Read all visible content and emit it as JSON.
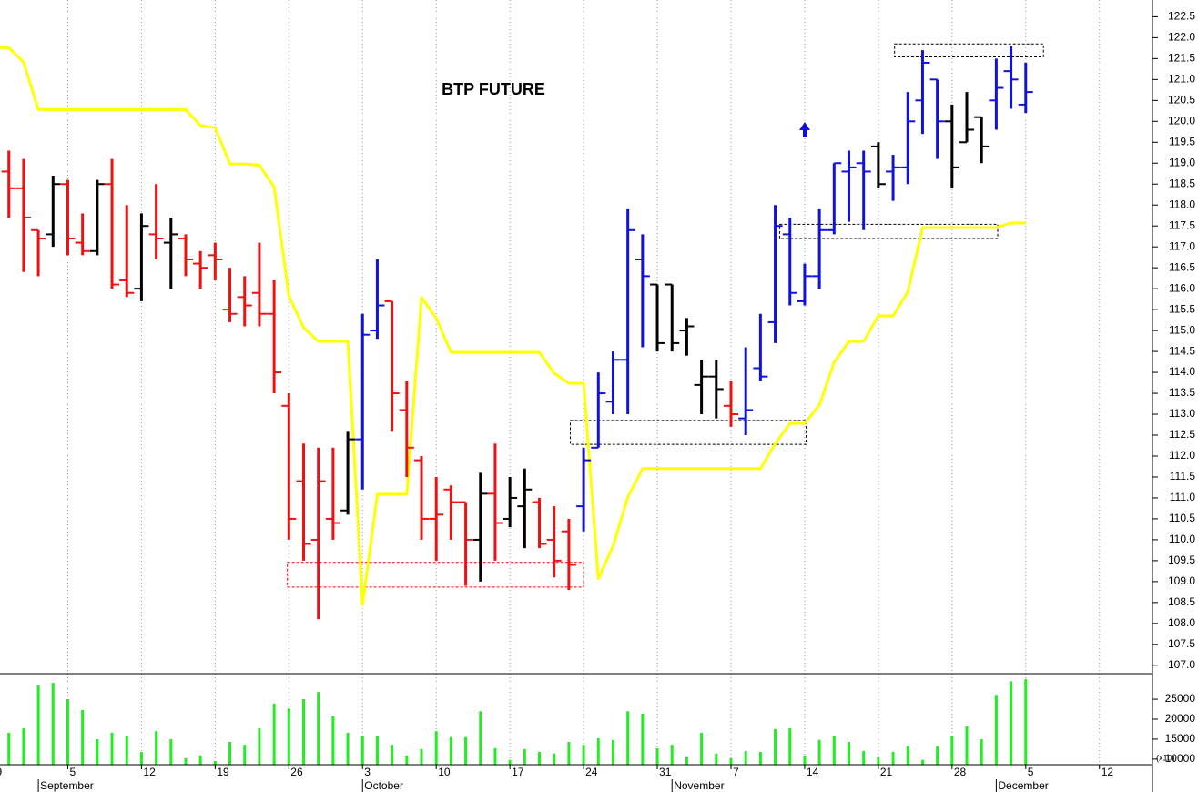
{
  "chart_data": [
    {
      "type": "ohlc",
      "title": "BTP FUTURE",
      "x": [
        1,
        2,
        3,
        4,
        5,
        6,
        7,
        8,
        9,
        10,
        11,
        12,
        13,
        14,
        15,
        16,
        17,
        18,
        19,
        20,
        21,
        22,
        23,
        24,
        25,
        26,
        27,
        28,
        29,
        30,
        31,
        32,
        33,
        34,
        35,
        36,
        37,
        38,
        39,
        40,
        41,
        42,
        43,
        44,
        45,
        46,
        47,
        48,
        49,
        50,
        51,
        52,
        53,
        54,
        55,
        56,
        57,
        58,
        59,
        60,
        61,
        62,
        63,
        64,
        65,
        66,
        67,
        68,
        69,
        70
      ],
      "open": [
        118.8,
        118.4,
        117.4,
        117.3,
        118.5,
        117.1,
        116.9,
        118.5,
        116.2,
        116.0,
        117.3,
        117.1,
        117.2,
        116.6,
        116.8,
        115.5,
        115.8,
        115.9,
        115.4,
        113.2,
        111.4,
        110.0,
        110.5,
        110.7,
        112.4,
        115.0,
        115.7,
        113.1,
        111.9,
        110.5,
        111.2,
        110.9,
        110.0,
        111.1,
        110.5,
        110.8,
        110.9,
        110.0,
        110.2,
        110.8,
        112.2,
        113.3,
        114.3,
        116.7,
        116.1,
        116.1,
        115.0,
        113.7,
        113.9,
        113.2,
        112.9,
        114.1,
        115.2,
        117.3,
        115.7,
        116.3,
        117.4,
        118.8,
        119.0,
        119.4,
        118.8,
        118.9,
        120.5,
        121.0,
        120.0,
        119.5,
        120.1,
        120.5,
        121.2,
        120.4
      ],
      "high": [
        119.3,
        119.1,
        117.4,
        118.7,
        118.6,
        117.8,
        118.6,
        119.1,
        118.0,
        117.8,
        118.5,
        117.7,
        117.3,
        116.9,
        117.1,
        116.5,
        116.3,
        117.1,
        116.2,
        113.5,
        112.3,
        112.2,
        112.2,
        112.6,
        115.4,
        116.7,
        115.7,
        113.8,
        112.0,
        111.5,
        111.3,
        110.9,
        111.6,
        112.3,
        111.5,
        111.7,
        111.0,
        110.8,
        110.5,
        112.2,
        114.0,
        114.5,
        117.9,
        117.3,
        116.1,
        116.1,
        115.3,
        114.3,
        114.3,
        113.8,
        114.6,
        115.4,
        118.0,
        117.7,
        116.6,
        117.9,
        119.0,
        119.3,
        119.3,
        119.5,
        119.2,
        120.7,
        121.7,
        121.0,
        120.4,
        120.7,
        120.1,
        121.5,
        121.8,
        121.4
      ],
      "low": [
        117.7,
        116.4,
        116.3,
        117.0,
        116.8,
        116.8,
        116.8,
        116.0,
        115.8,
        115.7,
        116.7,
        116.0,
        116.3,
        116.0,
        116.2,
        115.2,
        115.1,
        115.1,
        113.5,
        110.0,
        109.5,
        108.1,
        110.0,
        110.6,
        111.2,
        114.8,
        112.6,
        111.5,
        110.0,
        109.5,
        110.0,
        108.9,
        109.0,
        109.5,
        110.3,
        109.8,
        109.8,
        109.1,
        108.8,
        110.2,
        112.2,
        113.0,
        113.0,
        114.6,
        114.5,
        114.5,
        114.4,
        113.0,
        112.9,
        112.7,
        112.5,
        113.8,
        114.7,
        115.6,
        115.6,
        116.0,
        117.3,
        117.6,
        117.4,
        118.4,
        118.1,
        118.5,
        119.7,
        119.1,
        118.4,
        119.5,
        119.0,
        119.8,
        120.3,
        120.2
      ],
      "close": [
        118.4,
        117.7,
        117.2,
        118.5,
        117.2,
        116.9,
        118.5,
        116.1,
        115.9,
        117.5,
        117.2,
        117.3,
        116.7,
        116.5,
        116.7,
        115.4,
        115.6,
        115.4,
        114.0,
        110.5,
        109.9,
        111.4,
        110.4,
        112.4,
        114.9,
        115.6,
        113.5,
        112.2,
        110.5,
        110.6,
        110.9,
        110.0,
        111.1,
        110.4,
        111.0,
        111.2,
        109.9,
        109.5,
        109.4,
        111.9,
        113.5,
        114.3,
        117.4,
        116.3,
        114.7,
        114.7,
        115.1,
        113.9,
        113.6,
        113.0,
        113.1,
        113.9,
        117.5,
        115.9,
        116.3,
        117.4,
        119.0,
        118.9,
        118.8,
        118.5,
        118.9,
        120.0,
        121.4,
        120.0,
        118.9,
        119.8,
        119.4,
        120.8,
        121.0,
        120.7
      ],
      "bar_colors": [
        "#ee1111",
        "#ee1111",
        "#ee1111",
        "#000000",
        "#ee1111",
        "#ee1111",
        "#000000",
        "#ee1111",
        "#ee1111",
        "#000000",
        "#ee1111",
        "#000000",
        "#ee1111",
        "#ee1111",
        "#ee1111",
        "#ee1111",
        "#ee1111",
        "#ee1111",
        "#ee1111",
        "#ee1111",
        "#ee1111",
        "#ee1111",
        "#ee1111",
        "#000000",
        "#1111dd",
        "#1111dd",
        "#ee1111",
        "#ee1111",
        "#ee1111",
        "#ee1111",
        "#ee1111",
        "#ee1111",
        "#000000",
        "#ee1111",
        "#000000",
        "#000000",
        "#ee1111",
        "#ee1111",
        "#ee1111",
        "#1111dd",
        "#1111dd",
        "#1111dd",
        "#1111dd",
        "#1111dd",
        "#000000",
        "#000000",
        "#000000",
        "#000000",
        "#000000",
        "#ee1111",
        "#1111dd",
        "#1111dd",
        "#1111dd",
        "#1111dd",
        "#1111dd",
        "#1111dd",
        "#1111dd",
        "#1111dd",
        "#1111dd",
        "#000000",
        "#1111dd",
        "#1111dd",
        "#1111dd",
        "#1111dd",
        "#000000",
        "#000000",
        "#000000",
        "#1111dd",
        "#1111dd",
        "#1111dd"
      ],
      "series": [
        {
          "type": "line",
          "color": "#ffff00",
          "x": [
            0,
            1,
            2,
            3,
            4,
            5,
            6,
            7,
            8,
            9,
            10,
            11,
            12,
            13,
            14,
            15,
            16,
            17,
            18,
            19,
            20,
            21,
            22,
            23,
            24,
            25,
            26,
            27,
            28,
            29,
            30,
            31,
            32,
            33,
            34,
            35,
            36,
            37,
            38,
            39,
            40,
            41,
            42,
            43,
            44,
            45,
            46,
            47,
            48,
            49,
            50,
            51,
            52,
            53,
            54,
            55,
            56,
            57,
            58,
            59,
            60,
            61,
            62,
            63,
            64,
            65,
            66,
            67,
            68,
            69,
            70
          ],
          "values": [
            121.76,
            121.76,
            121.41,
            120.28,
            120.28,
            120.28,
            120.28,
            120.28,
            120.28,
            120.28,
            120.28,
            120.28,
            120.28,
            120.28,
            119.9,
            119.85,
            118.98,
            118.98,
            118.95,
            118.43,
            115.83,
            115.07,
            114.74,
            114.74,
            114.74,
            108.45,
            111.09,
            111.09,
            111.09,
            115.79,
            115.3,
            114.48,
            114.48,
            114.48,
            114.48,
            114.48,
            114.48,
            114.48,
            113.98,
            113.74,
            113.74,
            109.07,
            109.85,
            111.02,
            111.7,
            111.7,
            111.7,
            111.7,
            111.7,
            111.7,
            111.7,
            111.7,
            111.7,
            112.3,
            112.78,
            112.78,
            113.22,
            114.24,
            114.74,
            114.74,
            115.35,
            115.35,
            115.93,
            117.46,
            117.46,
            117.46,
            117.46,
            117.46,
            117.46,
            117.57,
            117.57
          ]
        }
      ],
      "zones": [
        {
          "x": [
            19.9,
            40.0
          ],
          "y": [
            108.87,
            109.46
          ],
          "color": "#ff0000"
        },
        {
          "x": [
            39.1,
            55.1
          ],
          "y": [
            112.28,
            112.85
          ],
          "color": "#000000"
        },
        {
          "x": [
            53.3,
            68.1
          ],
          "y": [
            117.2,
            117.54
          ],
          "color": "#000000"
        },
        {
          "x": [
            61.1,
            71.2
          ],
          "y": [
            121.54,
            121.85
          ],
          "color": "#000000"
        }
      ],
      "xlim": [
        0.4,
        78.6
      ],
      "xticks": [
        {
          "value": 0,
          "label": "9"
        },
        {
          "value": 5,
          "label": "5"
        },
        {
          "value": 10,
          "label": "12"
        },
        {
          "value": 15,
          "label": "19"
        },
        {
          "value": 20,
          "label": "26"
        },
        {
          "value": 25,
          "label": "3"
        },
        {
          "value": 30,
          "label": "10"
        },
        {
          "value": 35,
          "label": "17"
        },
        {
          "value": 40,
          "label": "24"
        },
        {
          "value": 45,
          "label": "31"
        },
        {
          "value": 50,
          "label": "7"
        },
        {
          "value": 55,
          "label": "14"
        },
        {
          "value": 60,
          "label": "21"
        },
        {
          "value": 65,
          "label": "28"
        },
        {
          "value": 70,
          "label": "5"
        },
        {
          "value": 75,
          "label": "12"
        }
      ],
      "month_ticks": [
        {
          "value": 3,
          "label": "September"
        },
        {
          "value": 25,
          "label": "October"
        },
        {
          "value": 46,
          "label": "November"
        },
        {
          "value": 68,
          "label": "December"
        }
      ],
      "ylim": [
        106.8,
        122.9
      ],
      "yticks": [
        {
          "value": 107,
          "label": "107.0"
        },
        107.5,
        {
          "value": 108,
          "label": "108.0"
        },
        108.5,
        {
          "value": 109,
          "label": "109.0"
        },
        109.5,
        {
          "value": 110,
          "label": "110.0"
        },
        110.5,
        {
          "value": 111,
          "label": "111.0"
        },
        111.5,
        {
          "value": 112,
          "label": "112.0"
        },
        112.5,
        {
          "value": 113,
          "label": "113.0"
        },
        113.5,
        {
          "value": 114,
          "label": "114.0"
        },
        114.5,
        {
          "value": 115,
          "label": "115.0"
        },
        115.5,
        {
          "value": 116,
          "label": "116.0"
        },
        116.5,
        {
          "value": 117,
          "label": "117.0"
        },
        117.5,
        {
          "value": 118,
          "label": "118.0"
        },
        118.5,
        {
          "value": 119,
          "label": "119.0"
        },
        119.5,
        {
          "value": 120,
          "label": "120.0"
        },
        120.5,
        {
          "value": 121,
          "label": "121.0"
        },
        121.5,
        {
          "value": 122,
          "label": "122.0"
        },
        122.5
      ],
      "grid": true
    },
    {
      "type": "bar",
      "color": "#22ee22",
      "unit_label": "(x10)",
      "x": [
        1,
        2,
        3,
        4,
        5,
        6,
        7,
        8,
        9,
        10,
        11,
        12,
        13,
        14,
        15,
        16,
        17,
        18,
        19,
        20,
        21,
        22,
        23,
        24,
        25,
        26,
        27,
        28,
        29,
        30,
        31,
        32,
        33,
        34,
        35,
        36,
        37,
        38,
        39,
        40,
        41,
        42,
        43,
        44,
        45,
        46,
        47,
        48,
        49,
        50,
        51,
        52,
        53,
        54,
        55,
        56,
        57,
        58,
        59,
        60,
        61,
        62,
        63,
        64,
        65,
        66,
        67,
        68,
        69,
        70
      ],
      "values": [
        16600,
        17700,
        28600,
        29100,
        25000,
        22300,
        15000,
        16600,
        15900,
        11800,
        17000,
        15000,
        10200,
        10900,
        9500,
        14300,
        13600,
        17700,
        23900,
        22700,
        25000,
        26800,
        20700,
        16600,
        15900,
        15900,
        13600,
        10900,
        12500,
        17000,
        15500,
        15500,
        22000,
        12700,
        9800,
        12500,
        11800,
        11400,
        14300,
        13600,
        15200,
        14800,
        22000,
        21400,
        12700,
        13600,
        10500,
        16600,
        11400,
        10200,
        12000,
        11800,
        17500,
        17700,
        10900,
        14800,
        15900,
        14300,
        12000,
        10500,
        11800,
        13200,
        9800,
        13200,
        15900,
        18200,
        15000,
        26100,
        29500,
        30000
      ],
      "ylim": [
        8600,
        31400
      ],
      "yticks": [
        10000,
        15000,
        20000,
        25000
      ]
    }
  ]
}
